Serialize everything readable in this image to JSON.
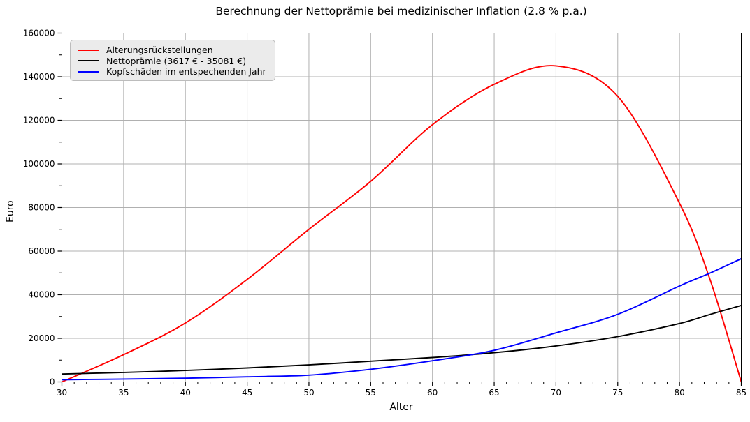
{
  "chart_data": {
    "type": "line",
    "title": "Berechnung der Nettoprämie bei medizinischer Inflation (2.8 % p.a.)",
    "xlabel": "Alter",
    "ylabel": "Euro",
    "xlim": [
      30,
      85
    ],
    "ylim": [
      0,
      160000
    ],
    "x_major_ticks": [
      30,
      35,
      40,
      45,
      50,
      55,
      60,
      65,
      70,
      75,
      80,
      85
    ],
    "x_minor_step": 1,
    "y_major_ticks": [
      0,
      20000,
      40000,
      60000,
      80000,
      100000,
      120000,
      140000,
      160000
    ],
    "y_minor_step": 10000,
    "grid": "major",
    "legend_position": "upper left",
    "x": [
      30,
      35,
      40,
      45,
      50,
      55,
      60,
      65,
      70,
      75,
      80,
      82.5,
      85
    ],
    "series": [
      {
        "name": "Alterungsrückstellungen",
        "color": "#ff0000",
        "values": [
          0,
          12500,
          27000,
          47000,
          70000,
          92000,
          118000,
          136500,
          145000,
          131000,
          82000,
          46500,
          0
        ]
      },
      {
        "name": "Nettoprämie (3617 € - 35081 €)",
        "color": "#000000",
        "values": [
          3617,
          4350,
          5250,
          6400,
          7800,
          9500,
          11200,
          13400,
          16500,
          20800,
          26800,
          31000,
          35081
        ]
      },
      {
        "name": "Kopfschäden im entspechenden Jahr",
        "color": "#0000ff",
        "values": [
          1000,
          1300,
          1700,
          2350,
          3100,
          5800,
          9700,
          14500,
          22500,
          31000,
          44000,
          50000,
          56500
        ]
      }
    ],
    "colors": {
      "grid": "#b0b0b0",
      "spine": "#000000",
      "tick": "#000000",
      "legend_bg": "#ebebeb",
      "legend_border": "#bcbcbc"
    }
  }
}
